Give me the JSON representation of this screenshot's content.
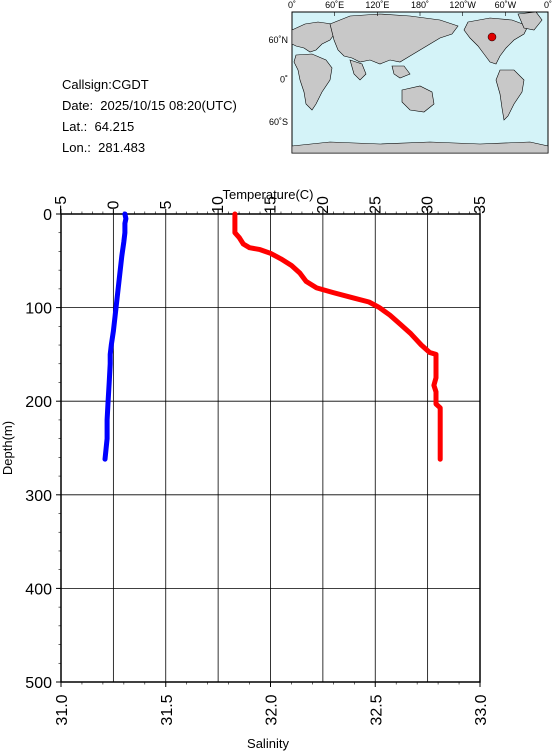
{
  "info": {
    "callsign": "Callsign:CGDT",
    "date": "Date:  2025/10/15 08:20(UTC)",
    "lat": "Lat.:  64.215",
    "lon": "Lon.:  281.483"
  },
  "map": {
    "top_labels": [
      "0˚",
      "60˚E",
      "120˚E",
      "180˚",
      "120˚W",
      "60˚W",
      "0˚"
    ],
    "left_labels": [
      "60˚N",
      "0˚",
      "60˚S"
    ],
    "ocean_color": "#d4f3f8",
    "land_color": "#c8c8c8",
    "marker_color": "#e00000"
  },
  "chart_data": {
    "type": "line",
    "ylabel": "Depth(m)",
    "y_ticks": [
      "0",
      "100",
      "200",
      "300",
      "400",
      "500"
    ],
    "ylim": [
      0,
      500
    ],
    "top_axis": {
      "label": "Temperature(C)",
      "range": [
        -5,
        35
      ],
      "ticks": [
        "−5",
        "0",
        "5",
        "10",
        "15",
        "20",
        "25",
        "30",
        "35"
      ]
    },
    "bottom_axis": {
      "label": "Salinity",
      "range": [
        31.0,
        33.0
      ],
      "ticks": [
        "31.0",
        "31.5",
        "32.0",
        "32.5",
        "33.0"
      ]
    },
    "series": [
      {
        "axis": "temperature",
        "color": "#0000ff",
        "points": [
          [
            1.1,
            0
          ],
          [
            1.2,
            5
          ],
          [
            1.1,
            10
          ],
          [
            1.1,
            20
          ],
          [
            1.0,
            30
          ],
          [
            0.8,
            45
          ],
          [
            0.6,
            65
          ],
          [
            0.4,
            85
          ],
          [
            0.2,
            105
          ],
          [
            0.0,
            125
          ],
          [
            -0.2,
            140
          ],
          [
            -0.3,
            150
          ],
          [
            -0.3,
            160
          ],
          [
            -0.4,
            180
          ],
          [
            -0.5,
            200
          ],
          [
            -0.6,
            220
          ],
          [
            -0.6,
            240
          ],
          [
            -0.8,
            262
          ]
        ]
      },
      {
        "axis": "salinity",
        "color": "#ff0000",
        "points": [
          [
            31.83,
            0
          ],
          [
            31.83,
            10
          ],
          [
            31.83,
            20
          ],
          [
            31.85,
            25
          ],
          [
            31.87,
            32
          ],
          [
            31.9,
            36
          ],
          [
            31.95,
            38
          ],
          [
            32.0,
            42
          ],
          [
            32.05,
            48
          ],
          [
            32.1,
            55
          ],
          [
            32.14,
            63
          ],
          [
            32.17,
            72
          ],
          [
            32.22,
            79
          ],
          [
            32.3,
            84
          ],
          [
            32.4,
            90
          ],
          [
            32.47,
            94
          ],
          [
            32.52,
            100
          ],
          [
            32.57,
            108
          ],
          [
            32.62,
            118
          ],
          [
            32.67,
            128
          ],
          [
            32.72,
            140
          ],
          [
            32.76,
            148
          ],
          [
            32.79,
            150
          ],
          [
            32.79,
            175
          ],
          [
            32.78,
            183
          ],
          [
            32.79,
            190
          ],
          [
            32.79,
            203
          ],
          [
            32.81,
            207
          ],
          [
            32.81,
            240
          ],
          [
            32.81,
            262
          ]
        ]
      }
    ]
  }
}
